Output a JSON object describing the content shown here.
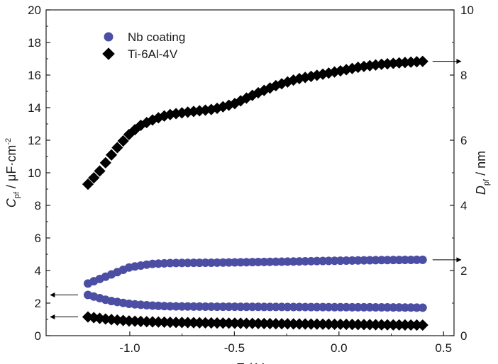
{
  "chart_data": {
    "type": "scatter",
    "xlabel": "E / V",
    "ylabel_left": {
      "main": "C",
      "sub": "pf",
      "unit_prefix": " / ",
      "mu": "μ",
      "unit_rest": "F·cm",
      "sup": "-2"
    },
    "ylabel_right": {
      "main": "D",
      "sub": "pf",
      "unit": " / nm"
    },
    "xlim": [
      -1.4,
      0.55
    ],
    "ylim_left": [
      0,
      20
    ],
    "ylim_right": [
      0,
      10
    ],
    "x_ticks": [
      -1.0,
      -0.5,
      0.0,
      0.5
    ],
    "x_tick_labels": [
      "-1.0",
      "-0.5",
      "0.0",
      "0.5"
    ],
    "y_left_ticks": [
      0,
      2,
      4,
      6,
      8,
      10,
      12,
      14,
      16,
      18,
      20
    ],
    "y_left_tick_labels": [
      "0",
      "2",
      "4",
      "6",
      "8",
      "10",
      "12",
      "14",
      "16",
      "18",
      "20"
    ],
    "y_right_ticks": [
      0,
      2,
      4,
      6,
      8,
      10
    ],
    "y_right_tick_labels": [
      "0",
      "2",
      "4",
      "6",
      "8",
      "10"
    ],
    "legend_position": "top-left",
    "series": [
      {
        "name": "Nb coating",
        "marker": "circle",
        "color": "#4B4EA3",
        "curves": [
          {
            "axis": "right",
            "arrow": "right",
            "x": [
              -1.2,
              -1.1,
              -1.0,
              -0.9,
              -0.8,
              -0.6,
              -0.4,
              -0.2,
              0.0,
              0.2,
              0.4
            ],
            "y": [
              1.6,
              1.85,
              2.1,
              2.2,
              2.23,
              2.24,
              2.26,
              2.28,
              2.3,
              2.32,
              2.33
            ]
          },
          {
            "axis": "left",
            "arrow": "left",
            "x": [
              -1.2,
              -1.1,
              -1.0,
              -0.9,
              -0.8,
              -0.6,
              -0.4,
              -0.2,
              0.0,
              0.2,
              0.4
            ],
            "y": [
              2.5,
              2.15,
              1.95,
              1.85,
              1.8,
              1.78,
              1.77,
              1.76,
              1.75,
              1.74,
              1.72
            ]
          }
        ]
      },
      {
        "name": "Ti-6Al-4V",
        "marker": "diamond",
        "color": "#000000",
        "curves": [
          {
            "axis": "right",
            "arrow": "right",
            "x": [
              -1.2,
              -1.15,
              -1.1,
              -1.05,
              -1.0,
              -0.95,
              -0.9,
              -0.85,
              -0.8,
              -0.7,
              -0.6,
              -0.5,
              -0.4,
              -0.3,
              -0.2,
              -0.1,
              0.0,
              0.1,
              0.2,
              0.3,
              0.4
            ],
            "y": [
              4.65,
              5.0,
              5.45,
              5.85,
              6.2,
              6.45,
              6.6,
              6.72,
              6.8,
              6.88,
              6.95,
              7.12,
              7.42,
              7.68,
              7.88,
              8.0,
              8.12,
              8.25,
              8.33,
              8.38,
              8.42
            ]
          },
          {
            "axis": "left",
            "arrow": "left",
            "x": [
              -1.2,
              -1.1,
              -1.0,
              -0.9,
              -0.8,
              -0.6,
              -0.4,
              -0.2,
              0.0,
              0.2,
              0.4
            ],
            "y": [
              1.15,
              1.0,
              0.9,
              0.85,
              0.82,
              0.78,
              0.75,
              0.72,
              0.7,
              0.67,
              0.65
            ]
          }
        ]
      }
    ]
  }
}
